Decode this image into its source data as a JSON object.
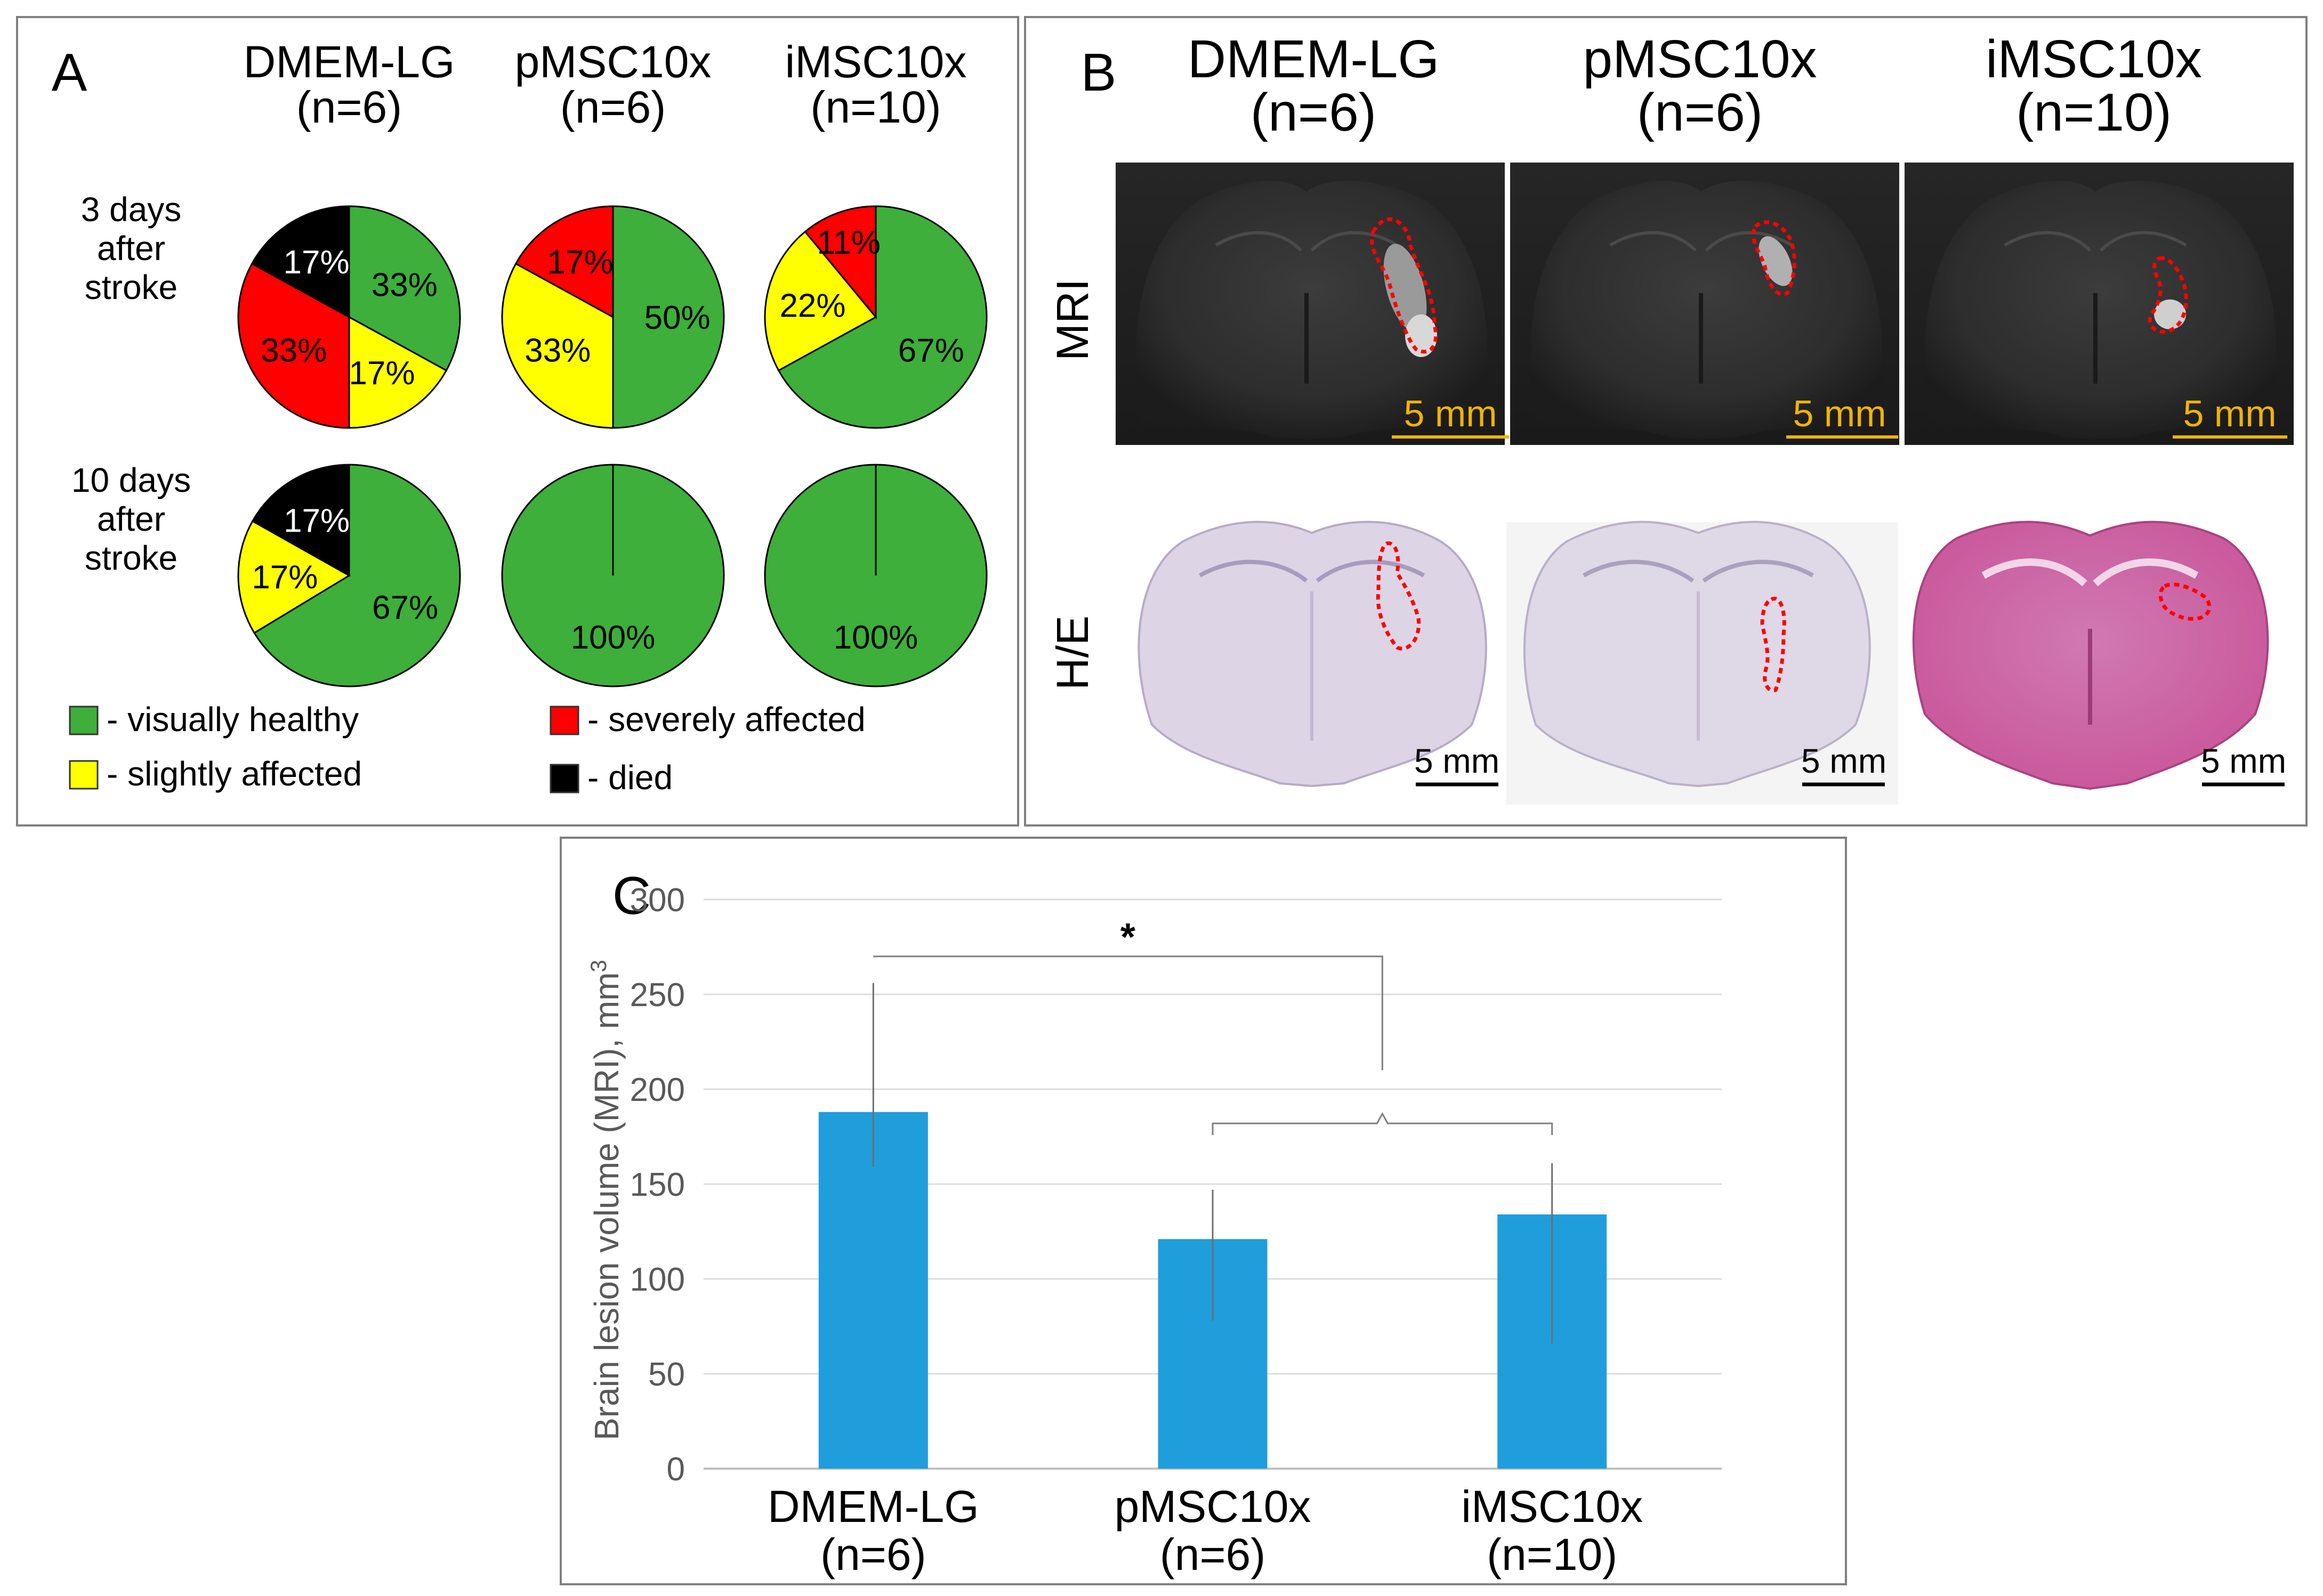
{
  "colors": {
    "healthy": "#3daf3a",
    "slight": "#ffff00",
    "severe": "#ff0000",
    "died": "#000000",
    "bar": "#1f9edb",
    "scale_mri": "#f0b400",
    "scale_he": "#000000",
    "lesion_outline": "#ff0000"
  },
  "panel_a": {
    "letter": "A",
    "groups": [
      {
        "name": "DMEM-LG",
        "n": "(n=6)"
      },
      {
        "name": "pMSC10x",
        "n": "(n=6)"
      },
      {
        "name": "iMSC10x",
        "n": "(n=10)"
      }
    ],
    "row_labels": [
      [
        "3 days",
        "after",
        "stroke"
      ],
      [
        "10 days",
        "after",
        "stroke"
      ]
    ],
    "legend": [
      {
        "key": "healthy",
        "label": "- visually healthy"
      },
      {
        "key": "slight",
        "label": "- slightly affected"
      },
      {
        "key": "severe",
        "label": "- severely affected"
      },
      {
        "key": "died",
        "label": "- died"
      }
    ]
  },
  "panel_b": {
    "letter": "B",
    "groups": [
      {
        "name": "DMEM-LG",
        "n": "(n=6)"
      },
      {
        "name": "pMSC10x",
        "n": "(n=6)"
      },
      {
        "name": "iMSC10x",
        "n": "(n=10)"
      }
    ],
    "row_labels": [
      "MRI",
      "H/E"
    ],
    "scale_label": "5 mm"
  },
  "panel_c": {
    "letter": "C"
  },
  "chart_data": [
    {
      "type": "pie",
      "title": "DMEM-LG (n=6) – 3 days after stroke",
      "slices": [
        {
          "category": "visually healthy",
          "key": "healthy",
          "value": 33,
          "label": "33%"
        },
        {
          "category": "slightly affected",
          "key": "slight",
          "value": 17,
          "label": "17%"
        },
        {
          "category": "severely affected",
          "key": "severe",
          "value": 33,
          "label": "33%"
        },
        {
          "category": "died",
          "key": "died",
          "value": 17,
          "label": "17%"
        }
      ]
    },
    {
      "type": "pie",
      "title": "pMSC10x (n=6) – 3 days after stroke",
      "slices": [
        {
          "category": "visually healthy",
          "key": "healthy",
          "value": 50,
          "label": "50%"
        },
        {
          "category": "slightly affected",
          "key": "slight",
          "value": 33,
          "label": "33%"
        },
        {
          "category": "severely affected",
          "key": "severe",
          "value": 17,
          "label": "17%"
        }
      ]
    },
    {
      "type": "pie",
      "title": "iMSC10x (n=10) – 3 days after stroke",
      "slices": [
        {
          "category": "visually healthy",
          "key": "healthy",
          "value": 67,
          "label": "67%"
        },
        {
          "category": "slightly affected",
          "key": "slight",
          "value": 22,
          "label": "22%"
        },
        {
          "category": "severely affected",
          "key": "severe",
          "value": 11,
          "label": "11%"
        }
      ]
    },
    {
      "type": "pie",
      "title": "DMEM-LG (n=6) – 10 days after stroke",
      "slices": [
        {
          "category": "visually healthy",
          "key": "healthy",
          "value": 67,
          "label": "67%"
        },
        {
          "category": "slightly affected",
          "key": "slight",
          "value": 17,
          "label": "17%"
        },
        {
          "category": "died",
          "key": "died",
          "value": 17,
          "label": "17%"
        }
      ]
    },
    {
      "type": "pie",
      "title": "pMSC10x (n=6) – 10 days after stroke",
      "slices": [
        {
          "category": "visually healthy",
          "key": "healthy",
          "value": 100,
          "label": "100%"
        }
      ]
    },
    {
      "type": "pie",
      "title": "iMSC10x (n=10) – 10 days after stroke",
      "slices": [
        {
          "category": "visually healthy",
          "key": "healthy",
          "value": 100,
          "label": "100%"
        }
      ]
    },
    {
      "type": "bar",
      "title": "",
      "categories": [
        {
          "name": "DMEM-LG",
          "n": "(n=6)"
        },
        {
          "name": "pMSC10x",
          "n": "(n=6)"
        },
        {
          "name": "iMSC10x",
          "n": "(n=10)"
        }
      ],
      "values": [
        188,
        121,
        134
      ],
      "error_low": [
        159,
        78,
        66
      ],
      "error_high": [
        256,
        147,
        161
      ],
      "ylabel": "Brain lesion volume (MRI), mm",
      "ylabel_sup": "3",
      "ylim": [
        0,
        300
      ],
      "yticks": [
        0,
        50,
        100,
        150,
        200,
        250,
        300
      ],
      "grid": true,
      "significance": {
        "label": "*",
        "from": 0,
        "to": [
          1,
          2
        ]
      }
    }
  ]
}
